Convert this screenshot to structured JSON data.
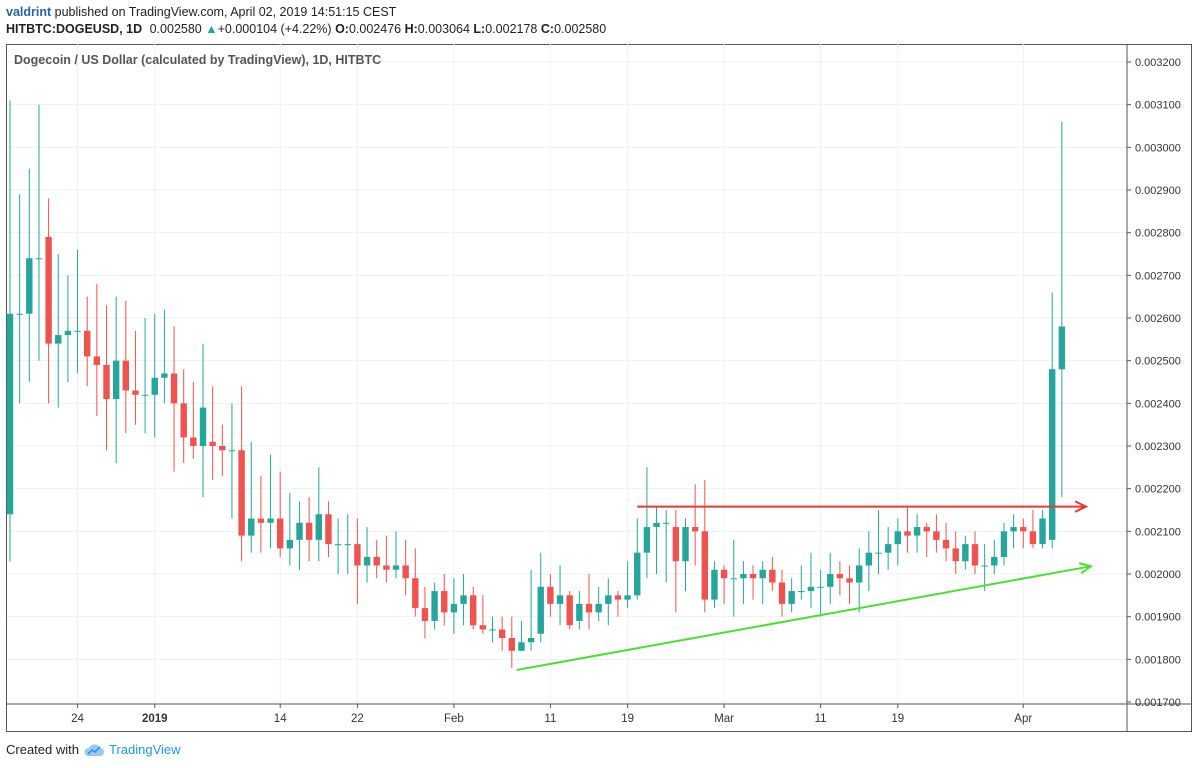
{
  "header": {
    "author": "valdrint",
    "published": "published on TradingView.com, April 02, 2019 14:51:15 CEST",
    "symbol": "HITBTC:DOGEUSD, 1D",
    "last": "0.002580",
    "change": "+0.000104 (+4.22%)",
    "o_label": "O:",
    "o": "0.002476",
    "h_label": "H:",
    "h": "0.003064",
    "l_label": "L:",
    "l": "0.002178",
    "c_label": "C:",
    "c": "0.002580"
  },
  "footer": {
    "created_with": "Created with",
    "brand": "TradingView"
  },
  "colors": {
    "up": "#26a69a",
    "down": "#ef5350",
    "resistance": "#e53935",
    "support": "#4cdf32",
    "grid": "#eef2f6"
  },
  "chart_data": {
    "type": "candlestick",
    "title": "Dogecoin / US Dollar (calculated by TradingView), 1D, HITBTC",
    "ylim": [
      0.0017,
      0.0032
    ],
    "y_ticks": [
      "0.001700",
      "0.001800",
      "0.001900",
      "0.002000",
      "0.002100",
      "0.002200",
      "0.002300",
      "0.002400",
      "0.002500",
      "0.002600",
      "0.002700",
      "0.002800",
      "0.002900",
      "0.003000",
      "0.003100",
      "0.003200"
    ],
    "x_ticks": [
      {
        "day": 7,
        "label": "24"
      },
      {
        "day": 15,
        "label": "2019"
      },
      {
        "day": 28,
        "label": "14"
      },
      {
        "day": 36,
        "label": "22"
      },
      {
        "day": 46,
        "label": "Feb"
      },
      {
        "day": 56,
        "label": "11"
      },
      {
        "day": 64,
        "label": "19"
      },
      {
        "day": 74,
        "label": "Mar"
      },
      {
        "day": 84,
        "label": "11"
      },
      {
        "day": 92,
        "label": "19"
      },
      {
        "day": 105,
        "label": "Apr"
      }
    ],
    "candles": [
      [
        0.00214,
        0.00311,
        0.00203,
        0.00261
      ],
      [
        0.00261,
        0.00289,
        0.0024,
        0.00261
      ],
      [
        0.00261,
        0.00295,
        0.00245,
        0.00274
      ],
      [
        0.00274,
        0.0031,
        0.0025,
        0.00274
      ],
      [
        0.00279,
        0.00288,
        0.0024,
        0.00254
      ],
      [
        0.00254,
        0.00275,
        0.00239,
        0.00256
      ],
      [
        0.00256,
        0.0027,
        0.00245,
        0.00257
      ],
      [
        0.00257,
        0.00276,
        0.00247,
        0.00257
      ],
      [
        0.00257,
        0.00265,
        0.00244,
        0.00251
      ],
      [
        0.00251,
        0.00268,
        0.00237,
        0.00249
      ],
      [
        0.00249,
        0.00263,
        0.00229,
        0.00241
      ],
      [
        0.00241,
        0.00265,
        0.00226,
        0.0025
      ],
      [
        0.0025,
        0.00264,
        0.00233,
        0.00243
      ],
      [
        0.00243,
        0.00257,
        0.00235,
        0.00242
      ],
      [
        0.00242,
        0.0026,
        0.00233,
        0.00242
      ],
      [
        0.00242,
        0.00261,
        0.00232,
        0.00246
      ],
      [
        0.00246,
        0.00262,
        0.0024,
        0.00247
      ],
      [
        0.00247,
        0.00258,
        0.00224,
        0.0024
      ],
      [
        0.0024,
        0.00248,
        0.00226,
        0.00232
      ],
      [
        0.00232,
        0.00245,
        0.00227,
        0.0023
      ],
      [
        0.0023,
        0.00254,
        0.00218,
        0.00239
      ],
      [
        0.00231,
        0.00244,
        0.00222,
        0.0023
      ],
      [
        0.0023,
        0.00235,
        0.00223,
        0.00229
      ],
      [
        0.00229,
        0.0024,
        0.00213,
        0.00229
      ],
      [
        0.00229,
        0.00244,
        0.00203,
        0.00209
      ],
      [
        0.00209,
        0.00231,
        0.00205,
        0.00213
      ],
      [
        0.00213,
        0.00223,
        0.00205,
        0.00212
      ],
      [
        0.00212,
        0.00228,
        0.00206,
        0.00213
      ],
      [
        0.00213,
        0.00224,
        0.00204,
        0.00206
      ],
      [
        0.00206,
        0.00219,
        0.00202,
        0.00208
      ],
      [
        0.00208,
        0.00217,
        0.00201,
        0.00212
      ],
      [
        0.00212,
        0.00218,
        0.00203,
        0.00208
      ],
      [
        0.00208,
        0.00225,
        0.00203,
        0.00214
      ],
      [
        0.00214,
        0.00217,
        0.00204,
        0.00207
      ],
      [
        0.00207,
        0.00213,
        0.002,
        0.00207
      ],
      [
        0.00207,
        0.00214,
        0.002,
        0.00207
      ],
      [
        0.00207,
        0.00213,
        0.00193,
        0.00202
      ],
      [
        0.00202,
        0.00211,
        0.00198,
        0.00204
      ],
      [
        0.00204,
        0.00208,
        0.00199,
        0.00202
      ],
      [
        0.00202,
        0.00209,
        0.00198,
        0.00201
      ],
      [
        0.00201,
        0.0021,
        0.00199,
        0.00202
      ],
      [
        0.00202,
        0.00208,
        0.00195,
        0.00199
      ],
      [
        0.00199,
        0.00206,
        0.0019,
        0.00192
      ],
      [
        0.00192,
        0.00197,
        0.00185,
        0.00189
      ],
      [
        0.00189,
        0.00198,
        0.00187,
        0.00196
      ],
      [
        0.00196,
        0.002,
        0.00188,
        0.00191
      ],
      [
        0.00191,
        0.00199,
        0.00186,
        0.00193
      ],
      [
        0.00193,
        0.002,
        0.00188,
        0.00195
      ],
      [
        0.00195,
        0.00197,
        0.00187,
        0.00188
      ],
      [
        0.00188,
        0.00195,
        0.00186,
        0.00187
      ],
      [
        0.00187,
        0.0019,
        0.00184,
        0.00187
      ],
      [
        0.00187,
        0.0019,
        0.00182,
        0.00185
      ],
      [
        0.00185,
        0.0019,
        0.00178,
        0.00182
      ],
      [
        0.00182,
        0.00189,
        0.00183,
        0.00184
      ],
      [
        0.00184,
        0.00201,
        0.00182,
        0.00185
      ],
      [
        0.00186,
        0.00205,
        0.00184,
        0.00197
      ],
      [
        0.00197,
        0.002,
        0.0019,
        0.00193
      ],
      [
        0.00193,
        0.00202,
        0.00188,
        0.00195
      ],
      [
        0.00195,
        0.00196,
        0.00187,
        0.00188
      ],
      [
        0.00189,
        0.00196,
        0.00187,
        0.00193
      ],
      [
        0.00193,
        0.002,
        0.00187,
        0.00191
      ],
      [
        0.00191,
        0.00197,
        0.00189,
        0.00193
      ],
      [
        0.00193,
        0.00199,
        0.00188,
        0.00195
      ],
      [
        0.00195,
        0.00196,
        0.0019,
        0.00194
      ],
      [
        0.00194,
        0.00203,
        0.00192,
        0.00195
      ],
      [
        0.00195,
        0.00213,
        0.00194,
        0.00205
      ],
      [
        0.00205,
        0.00225,
        0.00199,
        0.00211
      ],
      [
        0.00211,
        0.00216,
        0.002,
        0.00212
      ],
      [
        0.00212,
        0.00215,
        0.00198,
        0.00212
      ],
      [
        0.00211,
        0.00215,
        0.00191,
        0.00203
      ],
      [
        0.00203,
        0.00213,
        0.00196,
        0.00211
      ],
      [
        0.00211,
        0.00221,
        0.00202,
        0.0021
      ],
      [
        0.0021,
        0.00222,
        0.00191,
        0.00194
      ],
      [
        0.00194,
        0.00203,
        0.00192,
        0.00201
      ],
      [
        0.00201,
        0.00202,
        0.00193,
        0.00199
      ],
      [
        0.00199,
        0.00208,
        0.0019,
        0.00199
      ],
      [
        0.00199,
        0.00203,
        0.00193,
        0.002
      ],
      [
        0.002,
        0.00202,
        0.00194,
        0.00199
      ],
      [
        0.00199,
        0.00203,
        0.00193,
        0.00201
      ],
      [
        0.00201,
        0.00204,
        0.00196,
        0.00198
      ],
      [
        0.00198,
        0.00201,
        0.0019,
        0.00193
      ],
      [
        0.00193,
        0.00199,
        0.00191,
        0.00196
      ],
      [
        0.00196,
        0.00202,
        0.00194,
        0.00196
      ],
      [
        0.00196,
        0.00205,
        0.00192,
        0.00197
      ],
      [
        0.00197,
        0.00201,
        0.0019,
        0.00197
      ],
      [
        0.00197,
        0.00205,
        0.00193,
        0.002
      ],
      [
        0.002,
        0.00203,
        0.00195,
        0.00199
      ],
      [
        0.00199,
        0.00202,
        0.00193,
        0.00198
      ],
      [
        0.00198,
        0.00206,
        0.00191,
        0.00202
      ],
      [
        0.00202,
        0.0021,
        0.00196,
        0.00205
      ],
      [
        0.00205,
        0.00215,
        0.002,
        0.00205
      ],
      [
        0.00205,
        0.00211,
        0.00201,
        0.00207
      ],
      [
        0.00207,
        0.00213,
        0.00202,
        0.0021
      ],
      [
        0.0021,
        0.00216,
        0.00205,
        0.00209
      ],
      [
        0.00209,
        0.00214,
        0.00205,
        0.00211
      ],
      [
        0.00211,
        0.00212,
        0.00204,
        0.0021
      ],
      [
        0.0021,
        0.00214,
        0.00205,
        0.00208
      ],
      [
        0.00208,
        0.00212,
        0.00203,
        0.00206
      ],
      [
        0.00206,
        0.0021,
        0.002,
        0.00203
      ],
      [
        0.00203,
        0.00209,
        0.00201,
        0.00207
      ],
      [
        0.00207,
        0.0021,
        0.002,
        0.00202
      ],
      [
        0.00202,
        0.00207,
        0.00196,
        0.00202
      ],
      [
        0.00202,
        0.00208,
        0.002,
        0.00204
      ],
      [
        0.00204,
        0.00212,
        0.00202,
        0.0021
      ],
      [
        0.0021,
        0.00214,
        0.00206,
        0.00211
      ],
      [
        0.00211,
        0.00213,
        0.00206,
        0.0021
      ],
      [
        0.0021,
        0.00215,
        0.00206,
        0.00207
      ],
      [
        0.00207,
        0.00215,
        0.00206,
        0.00213
      ],
      [
        0.00208,
        0.00266,
        0.00206,
        0.00248
      ],
      [
        0.00248,
        0.00306,
        0.00218,
        0.00258
      ]
    ],
    "annotations": [
      {
        "type": "horizontal-arrow",
        "color": "resistance",
        "from": {
          "day": 65,
          "price": 0.002158
        },
        "to": {
          "day": 111.5,
          "price": 0.002158
        }
      },
      {
        "type": "trend-arrow",
        "color": "support",
        "from": {
          "day": 52.5,
          "price": 0.001775
        },
        "to": {
          "day": 112,
          "price": 0.002018
        }
      }
    ]
  }
}
